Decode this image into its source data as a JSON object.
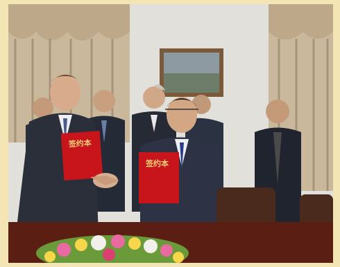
{
  "photo": {
    "folder_left_label": "签约本",
    "folder_right_label": "签约本",
    "colors": {
      "frame": "#f3e6b4",
      "wall": "#e2e0db",
      "curtain": "#c9b89b",
      "folder": "#c8141b",
      "table": "#5a1f12",
      "suit_dark": "#2a2f3a",
      "flowers": "#e86aa0"
    },
    "icons": [
      "framed-picture",
      "red-signing-folder",
      "flower-arrangement"
    ]
  }
}
